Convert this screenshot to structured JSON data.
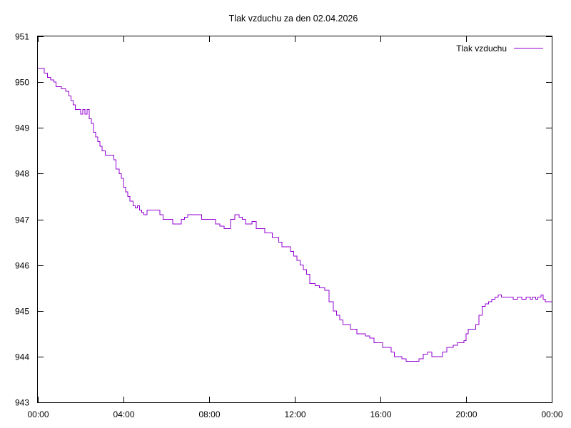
{
  "chart_data": {
    "type": "line",
    "title": "Tlak vzduchu za den 02.04.2026",
    "xlabel": "",
    "ylabel": "",
    "x_tick_labels": [
      "00:00",
      "04:00",
      "08:00",
      "12:00",
      "16:00",
      "20:00",
      "00:00"
    ],
    "x_tick_hours": [
      0,
      4,
      8,
      12,
      16,
      20,
      24
    ],
    "xlim_hours": [
      0,
      24
    ],
    "y_tick_labels": [
      "943",
      "944",
      "945",
      "946",
      "947",
      "948",
      "949",
      "950",
      "951"
    ],
    "y_tick_values": [
      943,
      944,
      945,
      946,
      947,
      948,
      949,
      950,
      951
    ],
    "ylim": [
      943,
      951
    ],
    "grid": false,
    "legend": {
      "placement": "top-right"
    },
    "series": [
      {
        "name": "Tlak vzduchu",
        "color": "#9400d3",
        "points": [
          [
            0.0,
            950.3
          ],
          [
            0.2,
            950.3
          ],
          [
            0.3,
            950.2
          ],
          [
            0.45,
            950.1
          ],
          [
            0.6,
            950.05
          ],
          [
            0.75,
            950.0
          ],
          [
            0.85,
            949.9
          ],
          [
            1.0,
            949.9
          ],
          [
            1.1,
            949.85
          ],
          [
            1.3,
            949.8
          ],
          [
            1.45,
            949.7
          ],
          [
            1.55,
            949.6
          ],
          [
            1.65,
            949.5
          ],
          [
            1.75,
            949.4
          ],
          [
            1.95,
            949.4
          ],
          [
            2.0,
            949.3
          ],
          [
            2.1,
            949.4
          ],
          [
            2.2,
            949.3
          ],
          [
            2.3,
            949.4
          ],
          [
            2.4,
            949.2
          ],
          [
            2.5,
            949.1
          ],
          [
            2.6,
            948.9
          ],
          [
            2.7,
            948.8
          ],
          [
            2.8,
            948.7
          ],
          [
            2.9,
            948.6
          ],
          [
            3.0,
            948.5
          ],
          [
            3.15,
            948.4
          ],
          [
            3.45,
            948.4
          ],
          [
            3.55,
            948.3
          ],
          [
            3.65,
            948.1
          ],
          [
            3.8,
            948.0
          ],
          [
            3.9,
            947.9
          ],
          [
            4.0,
            947.7
          ],
          [
            4.1,
            947.6
          ],
          [
            4.2,
            947.5
          ],
          [
            4.3,
            947.4
          ],
          [
            4.45,
            947.3
          ],
          [
            4.55,
            947.25
          ],
          [
            4.65,
            947.3
          ],
          [
            4.75,
            947.2
          ],
          [
            4.85,
            947.15
          ],
          [
            4.95,
            947.1
          ],
          [
            5.1,
            947.2
          ],
          [
            5.3,
            947.2
          ],
          [
            5.6,
            947.2
          ],
          [
            5.7,
            947.1
          ],
          [
            5.85,
            947.0
          ],
          [
            6.2,
            947.0
          ],
          [
            6.3,
            946.9
          ],
          [
            6.6,
            946.9
          ],
          [
            6.7,
            947.0
          ],
          [
            6.85,
            947.05
          ],
          [
            7.0,
            947.1
          ],
          [
            7.5,
            947.1
          ],
          [
            7.65,
            947.0
          ],
          [
            8.0,
            947.0
          ],
          [
            8.2,
            947.0
          ],
          [
            8.3,
            946.9
          ],
          [
            8.5,
            946.85
          ],
          [
            8.7,
            946.8
          ],
          [
            8.85,
            946.8
          ],
          [
            9.0,
            947.0
          ],
          [
            9.2,
            947.1
          ],
          [
            9.4,
            947.05
          ],
          [
            9.55,
            947.0
          ],
          [
            9.7,
            946.9
          ],
          [
            10.0,
            946.95
          ],
          [
            10.2,
            946.8
          ],
          [
            10.4,
            946.8
          ],
          [
            10.6,
            946.7
          ],
          [
            10.8,
            946.7
          ],
          [
            10.95,
            946.6
          ],
          [
            11.1,
            946.6
          ],
          [
            11.25,
            946.5
          ],
          [
            11.4,
            946.4
          ],
          [
            11.6,
            946.4
          ],
          [
            11.8,
            946.3
          ],
          [
            11.95,
            946.2
          ],
          [
            12.1,
            946.1
          ],
          [
            12.25,
            946.0
          ],
          [
            12.4,
            945.9
          ],
          [
            12.55,
            945.8
          ],
          [
            12.7,
            945.6
          ],
          [
            12.95,
            945.55
          ],
          [
            13.15,
            945.5
          ],
          [
            13.4,
            945.45
          ],
          [
            13.6,
            945.2
          ],
          [
            13.8,
            945.0
          ],
          [
            13.95,
            944.9
          ],
          [
            14.1,
            944.8
          ],
          [
            14.25,
            944.7
          ],
          [
            14.5,
            944.7
          ],
          [
            14.6,
            944.6
          ],
          [
            14.8,
            944.6
          ],
          [
            14.9,
            944.5
          ],
          [
            15.1,
            944.5
          ],
          [
            15.3,
            944.45
          ],
          [
            15.5,
            944.4
          ],
          [
            15.7,
            944.3
          ],
          [
            15.9,
            944.3
          ],
          [
            16.1,
            944.2
          ],
          [
            16.3,
            944.2
          ],
          [
            16.5,
            944.1
          ],
          [
            16.65,
            944.0
          ],
          [
            16.8,
            944.0
          ],
          [
            17.0,
            943.95
          ],
          [
            17.2,
            943.9
          ],
          [
            17.5,
            943.9
          ],
          [
            17.8,
            943.95
          ],
          [
            18.0,
            944.05
          ],
          [
            18.2,
            944.1
          ],
          [
            18.4,
            944.0
          ],
          [
            18.7,
            944.0
          ],
          [
            18.9,
            944.1
          ],
          [
            19.1,
            944.2
          ],
          [
            19.4,
            944.25
          ],
          [
            19.6,
            944.3
          ],
          [
            19.8,
            944.3
          ],
          [
            19.9,
            944.35
          ],
          [
            20.0,
            944.5
          ],
          [
            20.1,
            944.6
          ],
          [
            20.3,
            944.6
          ],
          [
            20.45,
            944.7
          ],
          [
            20.6,
            944.9
          ],
          [
            20.75,
            945.1
          ],
          [
            20.9,
            945.15
          ],
          [
            21.05,
            945.2
          ],
          [
            21.2,
            945.25
          ],
          [
            21.35,
            945.3
          ],
          [
            21.5,
            945.35
          ],
          [
            21.65,
            945.3
          ],
          [
            21.85,
            945.3
          ],
          [
            22.05,
            945.3
          ],
          [
            22.2,
            945.25
          ],
          [
            22.4,
            945.3
          ],
          [
            22.6,
            945.25
          ],
          [
            22.8,
            945.3
          ],
          [
            23.0,
            945.25
          ],
          [
            23.1,
            945.3
          ],
          [
            23.25,
            945.25
          ],
          [
            23.35,
            945.3
          ],
          [
            23.5,
            945.35
          ],
          [
            23.6,
            945.25
          ],
          [
            23.7,
            945.2
          ],
          [
            24.0,
            945.2
          ]
        ]
      }
    ]
  }
}
